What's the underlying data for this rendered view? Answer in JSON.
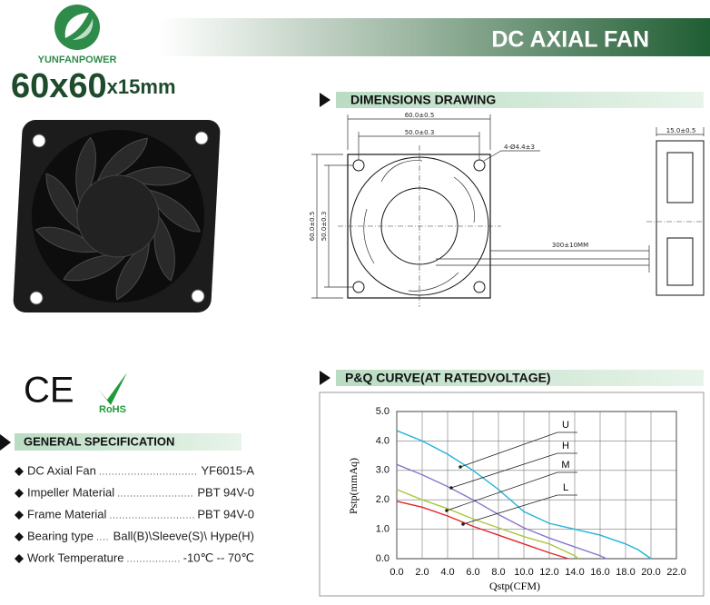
{
  "header": {
    "brand": "YUNFANPOWER",
    "title": "DC AXIAL FAN"
  },
  "model": {
    "size": "60x60",
    "thickness": "x15mm"
  },
  "certifications": [
    "CE",
    "RoHS"
  ],
  "dimensions": {
    "title": "DIMENSIONS DRAWING",
    "width": "60.0±0.5",
    "hole_spacing": "50.0±0.3",
    "holes": "4-Ø4.4±3",
    "height": "60.0±0.5",
    "hole_spacing_v": "50.0±0.3",
    "depth": "15.0±0.5",
    "cable": "300±10MM"
  },
  "specification": {
    "title": "GENERAL SPECIFICATION",
    "rows": [
      [
        "DC Axial Fan",
        "YF6015-A"
      ],
      [
        "Impeller Material",
        "PBT 94V-0"
      ],
      [
        "Frame Material",
        "PBT 94V-0"
      ],
      [
        "Bearing type",
        "Ball(B)\\Sleeve(S)\\ Hype(H)"
      ],
      [
        "Work Temperature",
        "-10℃ -- 70℃"
      ]
    ]
  },
  "chart_data": {
    "type": "line",
    "title": "P&Q CURVE(AT RATEDVOLTAGE)",
    "x_label": "Qstp(CFM)",
    "y_label": "Pstp(mmAq)",
    "xlim": [
      0,
      22
    ],
    "ylim": [
      0,
      5
    ],
    "xticks": [
      {
        "value": 0,
        "label": "0.0"
      },
      {
        "value": 2,
        "label": "2.0"
      },
      {
        "value": 4,
        "label": "4.0"
      },
      {
        "value": 6,
        "label": "6.0"
      },
      {
        "value": 8,
        "label": "8.0"
      },
      {
        "value": 10,
        "label": "10.0"
      },
      {
        "value": 12,
        "label": "12.0"
      },
      {
        "value": 14,
        "label": "14.0"
      },
      {
        "value": 16,
        "label": "16.0"
      },
      {
        "value": 18,
        "label": "18.0"
      },
      {
        "value": 20,
        "label": "20.0"
      },
      {
        "value": 22,
        "label": "22.0"
      }
    ],
    "yticks": [
      {
        "value": 0,
        "label": "0.0"
      },
      {
        "value": 1,
        "label": "1.0"
      },
      {
        "value": 2,
        "label": "2.0"
      },
      {
        "value": 3,
        "label": "3.0"
      },
      {
        "value": 4,
        "label": "4.0"
      },
      {
        "value": 5,
        "label": "5.0"
      }
    ],
    "grid": true,
    "series": [
      {
        "name": "U",
        "color": "#1fb4d8",
        "x": [
          0,
          2,
          4,
          6,
          8,
          10,
          12,
          14,
          16,
          18,
          19,
          20
        ],
        "values": [
          4.35,
          4.0,
          3.55,
          3.0,
          2.35,
          1.6,
          1.2,
          1.0,
          0.8,
          0.5,
          0.3,
          0
        ]
      },
      {
        "name": "H",
        "color": "#8877cc",
        "x": [
          0,
          2,
          4,
          6,
          8,
          10,
          12,
          14,
          16,
          16.5
        ],
        "values": [
          3.2,
          2.85,
          2.45,
          2.0,
          1.5,
          1.05,
          0.7,
          0.4,
          0.1,
          0
        ]
      },
      {
        "name": "M",
        "color": "#a8c83c",
        "x": [
          0,
          2,
          4,
          6,
          8,
          10,
          12,
          14,
          14.3
        ],
        "values": [
          2.35,
          2.0,
          1.7,
          1.35,
          1.05,
          0.75,
          0.5,
          0.1,
          0
        ]
      },
      {
        "name": "L",
        "color": "#e0262a",
        "x": [
          0,
          2,
          4,
          6,
          8,
          10,
          12,
          13.5
        ],
        "values": [
          1.95,
          1.75,
          1.45,
          1.1,
          0.8,
          0.5,
          0.2,
          0
        ]
      }
    ]
  }
}
